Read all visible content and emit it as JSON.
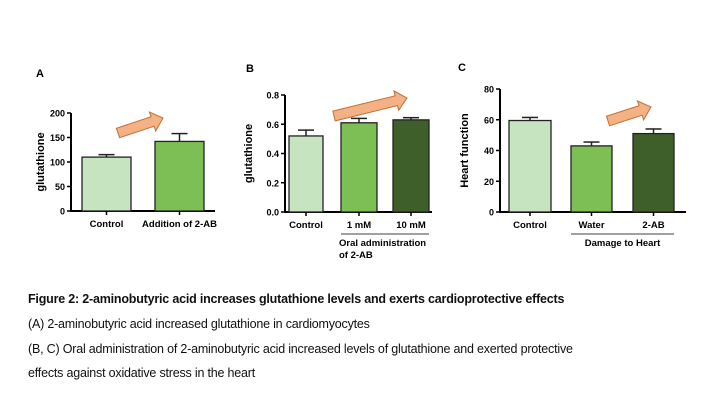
{
  "chart_data": [
    {
      "type": "bar",
      "panel": "A",
      "ylabel": "glutathione",
      "ylim": [
        0,
        200
      ],
      "yticks": [
        0,
        50,
        100,
        150,
        200
      ],
      "categories": [
        "Control",
        "Addition of 2-AB"
      ],
      "values": [
        110,
        142
      ],
      "error": [
        5,
        16
      ],
      "colors": [
        "#c6e4c0",
        "#7dbf55"
      ],
      "trend_arrow": true
    },
    {
      "type": "bar",
      "panel": "B",
      "ylabel": "glutathione",
      "ylim": [
        0,
        0.8
      ],
      "yticks": [
        "0.0",
        "0.2",
        "0.4",
        "0.6",
        "0.8"
      ],
      "categories": [
        "Control",
        "1 mM",
        "10 mM"
      ],
      "values": [
        0.52,
        0.61,
        0.63
      ],
      "error": [
        0.04,
        0.03,
        0.015
      ],
      "colors": [
        "#c6e4c0",
        "#7dbf55",
        "#3e5f2a"
      ],
      "group_label": [
        "Oral administration",
        "of 2-AB"
      ],
      "trend_arrow": true
    },
    {
      "type": "bar",
      "panel": "C",
      "ylabel": "Heart function",
      "ylim": [
        0,
        80
      ],
      "yticks": [
        0,
        20,
        40,
        60,
        80
      ],
      "categories": [
        "Control",
        "Water",
        "2-AB"
      ],
      "values": [
        59.5,
        43,
        51
      ],
      "error": [
        2,
        2.5,
        3
      ],
      "colors": [
        "#c6e4c0",
        "#7dbf55",
        "#3e5f2a"
      ],
      "group_label": [
        "Damage to Heart"
      ],
      "trend_arrow": true
    }
  ],
  "colors": {
    "arrow_fill": "#f4b183",
    "arrow_stroke": "#c0703a"
  },
  "caption": {
    "title": "Figure 2: 2-aminobutyric acid increases glutathione levels and exerts cardioprotective effects",
    "line1": "(A) 2-aminobutyric acid increased glutathione in cardiomyocytes",
    "line2": "(B, C) Oral administration of 2-aminobutyric acid increased levels of glutathione and exerted protective",
    "line3": "effects against oxidative stress in the heart"
  }
}
